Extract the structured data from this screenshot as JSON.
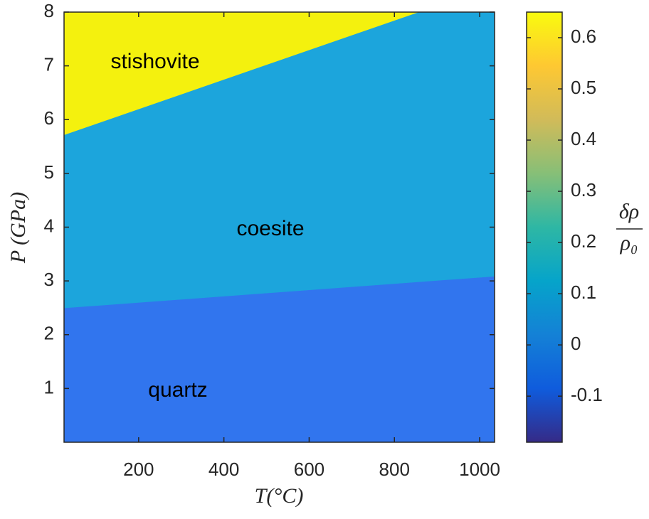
{
  "chart_data": {
    "type": "phase-map",
    "xlabel": "T(°C)",
    "ylabel": "P (GPa)",
    "xlim": [
      25,
      1035
    ],
    "ylim": [
      0,
      8
    ],
    "xticks": [
      200,
      400,
      600,
      800,
      1000
    ],
    "yticks": [
      1,
      2,
      3,
      4,
      5,
      6,
      7,
      8
    ],
    "regions": [
      {
        "name": "quartz",
        "color": "#3175ee"
      },
      {
        "name": "coesite",
        "color": "#1ca5dc"
      },
      {
        "name": "stishovite",
        "color": "#f4f10e"
      }
    ],
    "boundaries": [
      {
        "x": [
          25,
          1035
        ],
        "y": [
          2.5,
          3.09
        ]
      },
      {
        "x": [
          25,
          855
        ],
        "y": [
          5.72,
          8
        ]
      }
    ],
    "colorbar": {
      "label_numerator": "δρ",
      "label_denominator": "ρ₀",
      "lim": [
        -0.19,
        0.65
      ],
      "ticks": [
        -0.1,
        0,
        0.1,
        0.2,
        0.3,
        0.4,
        0.5,
        0.6
      ],
      "colormap": [
        "#352a87",
        "#0f5cdd",
        "#1481d6",
        "#06a4ca",
        "#2eb7a4",
        "#87bf77",
        "#d1bb59",
        "#fec832",
        "#f9fb0e"
      ]
    }
  }
}
